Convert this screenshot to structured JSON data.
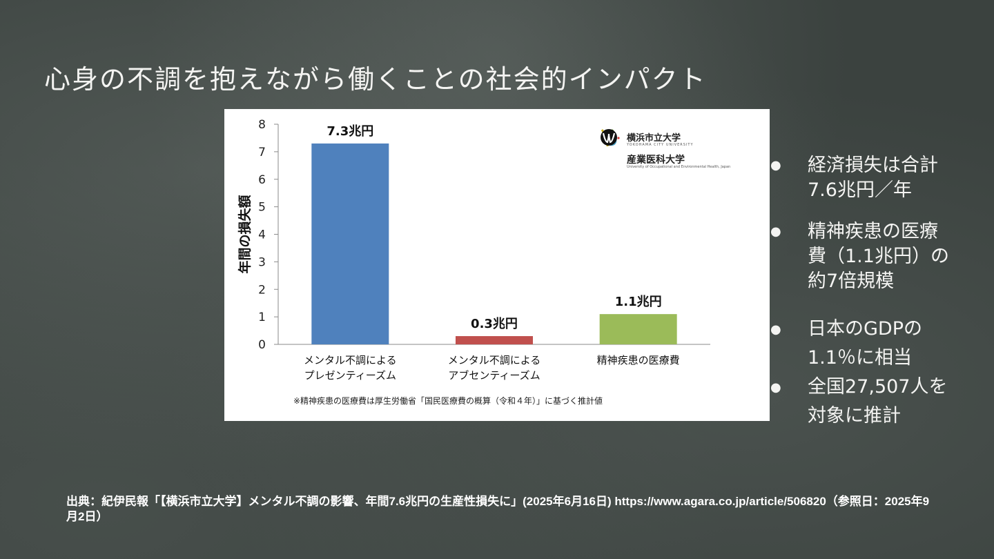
{
  "slide": {
    "title": "心身の不調を抱えながら働くことの社会的インパクト"
  },
  "bullets": [
    {
      "text": "経済損失は合計7.6兆円／年"
    },
    {
      "text": "精神疾患の医療費（1.1兆円）の約7倍規模"
    },
    {
      "text": "日本のGDPの1.1％に相当"
    },
    {
      "text": "全国27,507人を対象に推計"
    }
  ],
  "logos": {
    "univ1_name": "横浜市立大学",
    "univ1_sub": "YOKOHAMA CITY UNIVERSITY",
    "univ2_name": "産業医科大学",
    "univ2_sub": "University of Occupational and Environmental Health, Japan"
  },
  "source": {
    "text": "出典：紀伊民報「【横浜市立大学】メンタル不調の影響、年間7.6兆円の生産性損失に」(2025年6月16日) https://www.agara.co.jp/article/506820（参照日：2025年9月2日）"
  },
  "colors": {
    "bar1": "#4f81bd",
    "bar2": "#c0504d",
    "bar3": "#9bbb59"
  },
  "chart_data": {
    "type": "bar",
    "categories": [
      [
        "メンタル不調による",
        "プレゼンティーズム"
      ],
      [
        "メンタル不調による",
        "アブセンティーズム"
      ],
      [
        "精神疾患の医療費"
      ]
    ],
    "values": [
      7.3,
      0.3,
      1.1
    ],
    "data_labels": [
      "7.3兆円",
      "0.3兆円",
      "1.1兆円"
    ],
    "ylabel": "年間の損失額",
    "ylim": [
      0,
      8
    ],
    "yticks": [
      0,
      1,
      2,
      3,
      4,
      5,
      6,
      7,
      8
    ],
    "grid": false,
    "footnote": "※精神疾患の医療費は厚生労働省「国民医療費の概算（令和４年）」に基づく推計値"
  }
}
